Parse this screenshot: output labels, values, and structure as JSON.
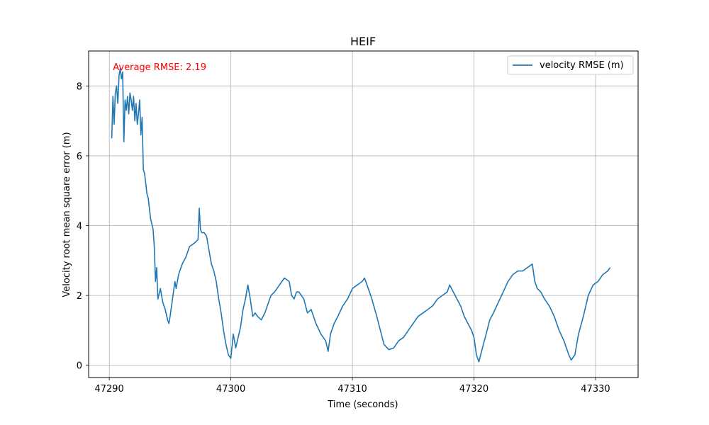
{
  "chart_data": {
    "type": "line",
    "title": "HEIF",
    "xlabel": "Time (seconds)",
    "ylabel": "Velocity root mean square error (m)",
    "xlim": [
      47288.3,
      47333.5
    ],
    "ylim": [
      -0.35,
      9.0
    ],
    "xticks": [
      47290,
      47300,
      47310,
      47320,
      47330
    ],
    "yticks": [
      0,
      2,
      4,
      6,
      8
    ],
    "xtick_labels": [
      "47290",
      "47300",
      "47310",
      "47320",
      "47330"
    ],
    "ytick_labels": [
      "0",
      "2",
      "4",
      "6",
      "8"
    ],
    "grid": true,
    "legend_position": "top-right",
    "annotation": {
      "text": "Average RMSE: 2.19",
      "color": "#ff0000",
      "x": 47290.3,
      "y": 8.55
    },
    "series": [
      {
        "name": "velocity RMSE (m)",
        "color": "#1f77b4",
        "x": [
          47290.2,
          47290.3,
          47290.4,
          47290.5,
          47290.6,
          47290.7,
          47290.8,
          47290.9,
          47291.0,
          47291.1,
          47291.2,
          47291.3,
          47291.4,
          47291.5,
          47291.6,
          47291.7,
          47291.8,
          47291.9,
          47292.0,
          47292.1,
          47292.2,
          47292.3,
          47292.4,
          47292.5,
          47292.6,
          47292.7,
          47292.8,
          47292.9,
          47293.0,
          47293.1,
          47293.2,
          47293.4,
          47293.6,
          47293.7,
          47293.8,
          47293.9,
          47294.0,
          47294.2,
          47294.4,
          47294.6,
          47294.8,
          47294.9,
          47295.0,
          47295.2,
          47295.4,
          47295.5,
          47295.7,
          47296.0,
          47296.3,
          47296.6,
          47297.0,
          47297.3,
          47297.4,
          47297.5,
          47297.6,
          47297.8,
          47298.0,
          47298.2,
          47298.4,
          47298.6,
          47298.8,
          47299.0,
          47299.2,
          47299.4,
          47299.6,
          47299.8,
          47300.0,
          47300.2,
          47300.4,
          47300.6,
          47300.8,
          47301.0,
          47301.2,
          47301.4,
          47301.6,
          47301.8,
          47302.0,
          47302.2,
          47302.5,
          47302.8,
          47303.0,
          47303.3,
          47303.6,
          47304.0,
          47304.4,
          47304.8,
          47305.0,
          47305.2,
          47305.4,
          47305.6,
          47306.0,
          47306.3,
          47306.6,
          47307.0,
          47307.4,
          47307.8,
          47308.0,
          47308.2,
          47308.5,
          47308.8,
          47309.2,
          47309.6,
          47310.0,
          47310.4,
          47310.8,
          47311.0,
          47311.3,
          47311.6,
          47312.0,
          47312.3,
          47312.6,
          47313.0,
          47313.4,
          47313.8,
          47314.2,
          47314.6,
          47315.0,
          47315.4,
          47315.8,
          47316.2,
          47316.6,
          47317.0,
          47317.4,
          47317.8,
          47318.0,
          47318.3,
          47318.6,
          47318.9,
          47319.2,
          47319.5,
          47319.8,
          47320.0,
          47320.2,
          47320.4,
          47320.7,
          47321.0,
          47321.3,
          47321.6,
          47322.0,
          47322.4,
          47322.8,
          47323.2,
          47323.6,
          47324.0,
          47324.4,
          47324.8,
          47325.0,
          47325.2,
          47325.5,
          47325.8,
          47326.2,
          47326.6,
          47327.0,
          47327.4,
          47327.8,
          47328.0,
          47328.3,
          47328.6,
          47329.0,
          47329.4,
          47329.8,
          47330.2,
          47330.6,
          47331.0,
          47331.2
        ],
        "y": [
          6.5,
          7.7,
          6.9,
          7.8,
          8.0,
          7.5,
          8.3,
          8.5,
          8.2,
          8.4,
          6.4,
          7.6,
          7.3,
          7.7,
          7.2,
          7.8,
          7.6,
          7.3,
          7.7,
          7.0,
          7.5,
          6.9,
          7.2,
          7.6,
          6.6,
          7.1,
          5.6,
          5.5,
          5.2,
          4.9,
          4.8,
          4.2,
          3.9,
          3.4,
          2.4,
          2.8,
          1.9,
          2.2,
          1.8,
          1.6,
          1.3,
          1.2,
          1.4,
          1.9,
          2.4,
          2.2,
          2.6,
          2.9,
          3.1,
          3.4,
          3.5,
          3.6,
          4.5,
          3.9,
          3.8,
          3.8,
          3.7,
          3.3,
          2.9,
          2.7,
          2.4,
          1.9,
          1.5,
          1.0,
          0.6,
          0.3,
          0.2,
          0.9,
          0.5,
          0.8,
          1.1,
          1.6,
          1.9,
          2.3,
          1.9,
          1.4,
          1.5,
          1.4,
          1.3,
          1.5,
          1.7,
          2.0,
          2.1,
          2.3,
          2.5,
          2.4,
          2.0,
          1.9,
          2.1,
          2.1,
          1.9,
          1.5,
          1.6,
          1.2,
          0.9,
          0.7,
          0.4,
          0.9,
          1.2,
          1.4,
          1.7,
          1.9,
          2.2,
          2.3,
          2.4,
          2.5,
          2.2,
          1.9,
          1.4,
          1.0,
          0.6,
          0.45,
          0.5,
          0.7,
          0.8,
          1.0,
          1.2,
          1.4,
          1.5,
          1.6,
          1.7,
          1.9,
          2.0,
          2.1,
          2.3,
          2.1,
          1.9,
          1.7,
          1.4,
          1.2,
          1.0,
          0.8,
          0.3,
          0.1,
          0.5,
          0.9,
          1.3,
          1.5,
          1.8,
          2.1,
          2.4,
          2.6,
          2.7,
          2.7,
          2.8,
          2.9,
          2.4,
          2.2,
          2.1,
          1.9,
          1.7,
          1.4,
          1.0,
          0.7,
          0.3,
          0.15,
          0.3,
          0.9,
          1.4,
          2.0,
          2.3,
          2.4,
          2.6,
          2.7,
          2.8
        ]
      }
    ]
  }
}
